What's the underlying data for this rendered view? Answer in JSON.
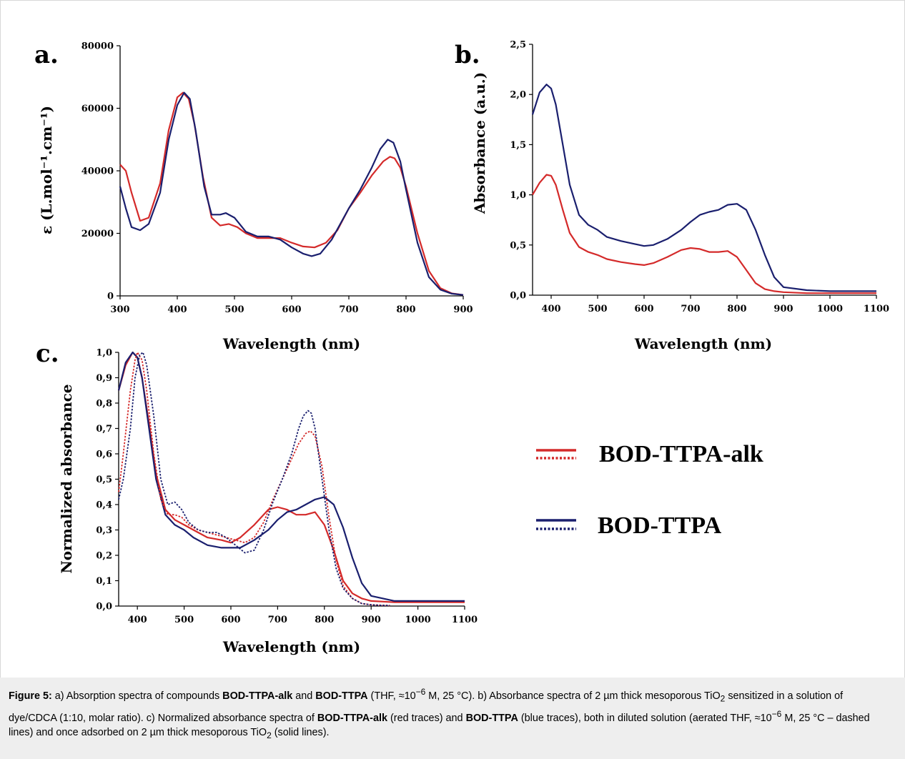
{
  "figure": {
    "panels": [
      {
        "id": "a",
        "letter": "a.",
        "xlabel": "Wavelength (nm)",
        "ylabel": "ε (L.mol⁻¹.cm⁻¹)",
        "xticks": [
          "300",
          "400",
          "500",
          "600",
          "700",
          "800",
          "900"
        ],
        "yticks": [
          "0",
          "20000",
          "40000",
          "60000",
          "80000"
        ]
      },
      {
        "id": "b",
        "letter": "b.",
        "xlabel": "Wavelength (nm)",
        "ylabel": "Absorbance (a.u.)",
        "xticks": [
          "400",
          "500",
          "600",
          "700",
          "800",
          "900",
          "1000",
          "1100"
        ],
        "yticks": [
          "0,0",
          "0,5",
          "1,0",
          "1,5",
          "2,0",
          "2,5"
        ]
      },
      {
        "id": "c",
        "letter": "c.",
        "xlabel": "Wavelength (nm)",
        "ylabel": "Normalized absorbance",
        "xticks": [
          "400",
          "500",
          "600",
          "700",
          "800",
          "900",
          "1000",
          "1100"
        ],
        "yticks": [
          "0,0",
          "0,1",
          "0,2",
          "0,3",
          "0,4",
          "0,5",
          "0,6",
          "0,7",
          "0,8",
          "0,9",
          "1,0"
        ]
      }
    ],
    "legend": [
      {
        "label": "BOD-TTPA-alk",
        "color": "#d42a2a"
      },
      {
        "label": "BOD-TTPA",
        "color": "#1a1f6e"
      }
    ]
  },
  "colors": {
    "red": "#d42a2a",
    "blue": "#1a1f6e",
    "caption_bg": "#eeeeee"
  },
  "caption": {
    "label": "Figure 5:",
    "t1": " a) Absorption spectra of compounds ",
    "b1": "BOD-TTPA-alk",
    "t2": " and ",
    "b2": "BOD-TTPA",
    "t3": " (THF, ≈10",
    "sup1": "−6",
    "t4": " M, 25 °C). b) Absorbance spectra of 2 µm thick meso­porous TiO",
    "sub1": "2",
    "t5": " sensitized in a solution of dye/CDCA (1:10, molar ratio). c) Normalized absorbance spectra of ",
    "b3": "BOD-TTPA-alk",
    "t6": " (red traces) and ",
    "b4": "BOD-TTPA",
    "t7": " (blue traces), both in diluted solution (aerated THF, ≈10",
    "sup2": "−6",
    "t8": " M, 25 °C – dashed lines) and once adsorbed on 2 µm thick mesoporous TiO",
    "sub2": "2",
    "t9": " (solid lines)."
  },
  "chart_data": [
    {
      "type": "line",
      "panel": "a",
      "xlabel": "Wavelength (nm)",
      "ylabel": "ε (L.mol⁻¹.cm⁻¹)",
      "xlim": [
        300,
        900
      ],
      "ylim": [
        0,
        80000
      ],
      "series": [
        {
          "name": "BOD-TTPA-alk",
          "color": "#d42a2a",
          "style": "solid",
          "x": [
            300,
            310,
            320,
            335,
            350,
            370,
            385,
            400,
            410,
            420,
            430,
            445,
            460,
            475,
            490,
            505,
            520,
            540,
            560,
            580,
            600,
            620,
            640,
            660,
            680,
            700,
            720,
            740,
            760,
            772,
            780,
            790,
            800,
            820,
            840,
            860,
            880,
            900
          ],
          "y": [
            42000,
            40000,
            33000,
            24000,
            25000,
            36000,
            53000,
            63500,
            65000,
            63000,
            55000,
            38000,
            25000,
            22500,
            23000,
            22000,
            20000,
            18500,
            18500,
            18500,
            17000,
            15800,
            15500,
            17000,
            21000,
            28000,
            33000,
            38500,
            43000,
            44500,
            44000,
            41000,
            35000,
            20000,
            8000,
            2500,
            800,
            300
          ]
        },
        {
          "name": "BOD-TTPA",
          "color": "#1a1f6e",
          "style": "solid",
          "x": [
            300,
            310,
            320,
            335,
            350,
            370,
            385,
            400,
            412,
            422,
            432,
            447,
            460,
            475,
            485,
            500,
            520,
            540,
            560,
            580,
            600,
            620,
            635,
            650,
            670,
            700,
            720,
            740,
            755,
            768,
            778,
            790,
            800,
            820,
            840,
            860,
            880,
            900
          ],
          "y": [
            35000,
            28000,
            22000,
            21000,
            23000,
            33000,
            50000,
            61000,
            65000,
            63000,
            53000,
            35000,
            26000,
            26000,
            26500,
            25000,
            20500,
            19000,
            19000,
            18000,
            15500,
            13500,
            12700,
            13500,
            18000,
            28000,
            34000,
            41000,
            47000,
            50000,
            49000,
            43000,
            34000,
            17000,
            6000,
            2000,
            700,
            300
          ]
        }
      ]
    },
    {
      "type": "line",
      "panel": "b",
      "xlabel": "Wavelength (nm)",
      "ylabel": "Absorbance (a.u.)",
      "xlim": [
        360,
        1100
      ],
      "ylim": [
        0,
        2.5
      ],
      "series": [
        {
          "name": "BOD-TTPA-alk",
          "color": "#d42a2a",
          "style": "solid",
          "x": [
            360,
            375,
            390,
            400,
            410,
            425,
            440,
            460,
            480,
            500,
            520,
            550,
            580,
            600,
            620,
            650,
            680,
            700,
            720,
            740,
            760,
            780,
            800,
            820,
            840,
            860,
            880,
            900,
            950,
            1000,
            1050,
            1100
          ],
          "y": [
            1.0,
            1.12,
            1.2,
            1.19,
            1.1,
            0.85,
            0.62,
            0.48,
            0.43,
            0.4,
            0.36,
            0.33,
            0.31,
            0.3,
            0.32,
            0.38,
            0.45,
            0.47,
            0.46,
            0.43,
            0.43,
            0.44,
            0.38,
            0.25,
            0.12,
            0.06,
            0.04,
            0.03,
            0.02,
            0.02,
            0.02,
            0.02
          ]
        },
        {
          "name": "BOD-TTPA",
          "color": "#1a1f6e",
          "style": "solid",
          "x": [
            360,
            375,
            390,
            400,
            410,
            425,
            440,
            460,
            480,
            500,
            520,
            550,
            580,
            600,
            620,
            650,
            680,
            700,
            720,
            740,
            760,
            780,
            800,
            820,
            840,
            860,
            880,
            900,
            950,
            1000,
            1050,
            1100
          ],
          "y": [
            1.8,
            2.02,
            2.1,
            2.06,
            1.9,
            1.5,
            1.1,
            0.8,
            0.7,
            0.65,
            0.58,
            0.54,
            0.51,
            0.49,
            0.5,
            0.56,
            0.65,
            0.73,
            0.8,
            0.83,
            0.85,
            0.9,
            0.91,
            0.85,
            0.65,
            0.4,
            0.18,
            0.08,
            0.05,
            0.04,
            0.04,
            0.04
          ]
        }
      ]
    },
    {
      "type": "line",
      "panel": "c",
      "xlabel": "Wavelength (nm)",
      "ylabel": "Normalized absorbance",
      "xlim": [
        360,
        1100
      ],
      "ylim": [
        0,
        1.0
      ],
      "series": [
        {
          "name": "BOD-TTPA-alk",
          "color": "#d42a2a",
          "style": "solid",
          "x": [
            360,
            375,
            390,
            400,
            410,
            425,
            440,
            460,
            480,
            500,
            520,
            550,
            580,
            600,
            620,
            650,
            680,
            700,
            720,
            740,
            760,
            780,
            800,
            820,
            840,
            860,
            880,
            900,
            950,
            1000,
            1050,
            1100
          ],
          "y": [
            0.85,
            0.95,
            1.0,
            0.98,
            0.9,
            0.72,
            0.52,
            0.38,
            0.34,
            0.32,
            0.3,
            0.27,
            0.26,
            0.25,
            0.27,
            0.32,
            0.38,
            0.39,
            0.38,
            0.36,
            0.36,
            0.37,
            0.32,
            0.22,
            0.1,
            0.05,
            0.03,
            0.02,
            0.015,
            0.015,
            0.015,
            0.015
          ]
        },
        {
          "name": "BOD-TTPA",
          "color": "#1a1f6e",
          "style": "solid",
          "x": [
            360,
            375,
            390,
            400,
            410,
            425,
            440,
            460,
            480,
            500,
            520,
            550,
            580,
            600,
            620,
            650,
            680,
            700,
            720,
            740,
            760,
            780,
            800,
            820,
            840,
            860,
            880,
            900,
            950,
            1000,
            1050,
            1100
          ],
          "y": [
            0.85,
            0.96,
            1.0,
            0.98,
            0.9,
            0.7,
            0.5,
            0.36,
            0.32,
            0.3,
            0.27,
            0.24,
            0.23,
            0.23,
            0.23,
            0.26,
            0.3,
            0.34,
            0.37,
            0.38,
            0.4,
            0.42,
            0.43,
            0.4,
            0.31,
            0.19,
            0.09,
            0.04,
            0.02,
            0.02,
            0.02,
            0.02
          ]
        },
        {
          "name": "BOD-TTPA-alk",
          "color": "#d42a2a",
          "style": "dashed",
          "x": [
            360,
            370,
            385,
            395,
            400,
            410,
            420,
            435,
            450,
            465,
            480,
            495,
            510,
            530,
            550,
            570,
            590,
            610,
            630,
            650,
            670,
            690,
            710,
            730,
            745,
            760,
            770,
            780,
            795,
            810,
            825,
            840,
            860,
            880,
            900,
            920,
            940
          ],
          "y": [
            0.45,
            0.6,
            0.85,
            0.97,
            1.0,
            0.97,
            0.85,
            0.6,
            0.42,
            0.36,
            0.36,
            0.35,
            0.32,
            0.3,
            0.29,
            0.28,
            0.27,
            0.26,
            0.25,
            0.27,
            0.33,
            0.42,
            0.5,
            0.58,
            0.64,
            0.68,
            0.69,
            0.67,
            0.55,
            0.35,
            0.18,
            0.08,
            0.03,
            0.01,
            0.005,
            0.003,
            0.002
          ]
        },
        {
          "name": "BOD-TTPA",
          "color": "#1a1f6e",
          "style": "dashed",
          "x": [
            360,
            370,
            385,
            395,
            405,
            412,
            420,
            435,
            450,
            465,
            480,
            495,
            510,
            530,
            550,
            570,
            590,
            610,
            630,
            650,
            670,
            690,
            710,
            730,
            745,
            755,
            765,
            772,
            780,
            795,
            810,
            825,
            840,
            860,
            880,
            900,
            920,
            940
          ],
          "y": [
            0.42,
            0.5,
            0.7,
            0.9,
            0.99,
            1.0,
            0.95,
            0.75,
            0.5,
            0.4,
            0.41,
            0.38,
            0.33,
            0.3,
            0.29,
            0.29,
            0.27,
            0.24,
            0.21,
            0.22,
            0.3,
            0.41,
            0.5,
            0.6,
            0.7,
            0.75,
            0.77,
            0.76,
            0.7,
            0.5,
            0.3,
            0.15,
            0.07,
            0.03,
            0.01,
            0.005,
            0.003,
            0.002
          ]
        }
      ]
    }
  ]
}
